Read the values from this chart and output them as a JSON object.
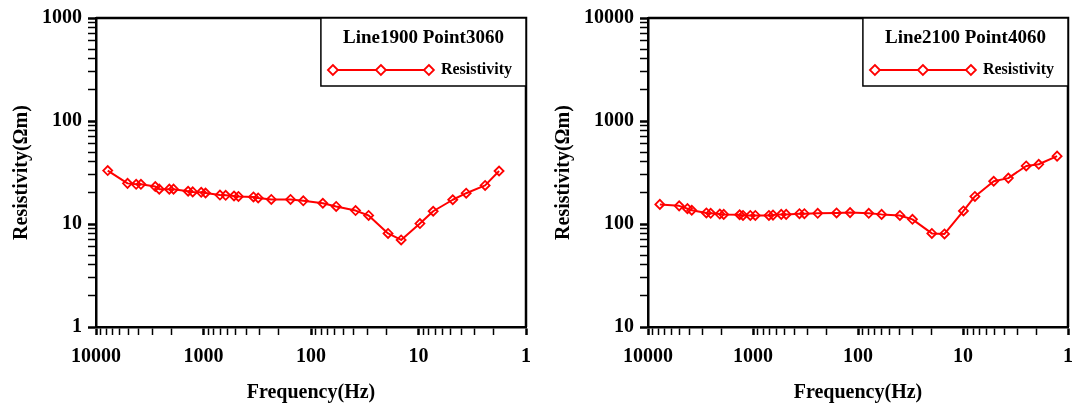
{
  "chart_data": [
    {
      "type": "line",
      "xlabel": "Frequency(Hz)",
      "ylabel": "Resistivity(Ωm)",
      "legend_title": "Line1900 Point3060",
      "legend": "top right",
      "marker": "diamond",
      "line_style": "solid",
      "log": "xy",
      "grid": false,
      "xlim": [
        10000,
        1
      ],
      "ylim": [
        1,
        1000
      ],
      "xticks": [
        10000,
        {
          "value": 9000,
          "label": null
        },
        {
          "value": 8000,
          "label": null
        },
        {
          "value": 7000,
          "label": null
        },
        {
          "value": 6000,
          "label": null
        },
        {
          "value": 5000,
          "label": null
        },
        {
          "value": 4000,
          "label": null
        },
        {
          "value": 3000,
          "label": null
        },
        {
          "value": 2000,
          "label": null
        },
        1000,
        {
          "value": 900,
          "label": null
        },
        {
          "value": 800,
          "label": null
        },
        {
          "value": 700,
          "label": null
        },
        {
          "value": 600,
          "label": null
        },
        {
          "value": 500,
          "label": null
        },
        {
          "value": 400,
          "label": null
        },
        {
          "value": 300,
          "label": null
        },
        {
          "value": 200,
          "label": null
        },
        100,
        {
          "value": 90,
          "label": null
        },
        {
          "value": 80,
          "label": null
        },
        {
          "value": 70,
          "label": null
        },
        {
          "value": 60,
          "label": null
        },
        {
          "value": 50,
          "label": null
        },
        {
          "value": 40,
          "label": null
        },
        {
          "value": 30,
          "label": null
        },
        {
          "value": 20,
          "label": null
        },
        10,
        {
          "value": 9,
          "label": null
        },
        {
          "value": 8,
          "label": null
        },
        {
          "value": 7,
          "label": null
        },
        {
          "value": 6,
          "label": null
        },
        {
          "value": 5,
          "label": null
        },
        {
          "value": 4,
          "label": null
        },
        {
          "value": 3,
          "label": null
        },
        {
          "value": 2,
          "label": null
        },
        1
      ],
      "yticks": [
        1,
        {
          "value": 2,
          "label": null
        },
        {
          "value": 3,
          "label": null
        },
        {
          "value": 4,
          "label": null
        },
        {
          "value": 5,
          "label": null
        },
        {
          "value": 6,
          "label": null
        },
        {
          "value": 7,
          "label": null
        },
        {
          "value": 8,
          "label": null
        },
        {
          "value": 9,
          "label": null
        },
        10,
        {
          "value": 20,
          "label": null
        },
        {
          "value": 30,
          "label": null
        },
        {
          "value": 40,
          "label": null
        },
        {
          "value": 50,
          "label": null
        },
        {
          "value": 60,
          "label": null
        },
        {
          "value": 70,
          "label": null
        },
        {
          "value": 80,
          "label": null
        },
        {
          "value": 90,
          "label": null
        },
        100,
        {
          "value": 200,
          "label": null
        },
        {
          "value": 300,
          "label": null
        },
        {
          "value": 400,
          "label": null
        },
        {
          "value": 500,
          "label": null
        },
        {
          "value": 600,
          "label": null
        },
        {
          "value": 700,
          "label": null
        },
        {
          "value": 800,
          "label": null
        },
        {
          "value": 900,
          "label": null
        },
        1000
      ],
      "x": [
        7780,
        5090,
        4230,
        3820,
        2810,
        2580,
        2080,
        1900,
        1390,
        1260,
        1050,
        957,
        703,
        622,
        520,
        473,
        343,
        310,
        234,
        155,
        118,
        77.6,
        58.3,
        38.5,
        29.1,
        19.2,
        14.5,
        9.7,
        7.3,
        4.8,
        3.6,
        2.4,
        1.78
      ],
      "series": [
        {
          "name": "Resistivity",
          "color": "#ff0000",
          "values": [
            33,
            24.8,
            24.3,
            24.3,
            23.1,
            21.8,
            21.8,
            21.8,
            20.8,
            20.5,
            20.3,
            20,
            19.1,
            19,
            18.7,
            18.5,
            18.3,
            17.9,
            17.3,
            17.3,
            16.8,
            15.9,
            14.8,
            13.5,
            12.1,
            8.1,
            7,
            10.1,
            13.3,
            17.2,
            19.9,
            23.7,
            32.7
          ]
        }
      ]
    },
    {
      "type": "line",
      "xlabel": "Frequency(Hz)",
      "ylabel": "Resistivity(Ωm)",
      "legend_title": "Line2100 Point4060",
      "legend": "top right",
      "marker": "diamond",
      "line_style": "solid",
      "log": "xy",
      "grid": false,
      "xlim": [
        10000,
        1
      ],
      "ylim": [
        10,
        10000
      ],
      "xticks": [
        10000,
        {
          "value": 9000,
          "label": null
        },
        {
          "value": 8000,
          "label": null
        },
        {
          "value": 7000,
          "label": null
        },
        {
          "value": 6000,
          "label": null
        },
        {
          "value": 5000,
          "label": null
        },
        {
          "value": 4000,
          "label": null
        },
        {
          "value": 3000,
          "label": null
        },
        {
          "value": 2000,
          "label": null
        },
        1000,
        {
          "value": 900,
          "label": null
        },
        {
          "value": 800,
          "label": null
        },
        {
          "value": 700,
          "label": null
        },
        {
          "value": 600,
          "label": null
        },
        {
          "value": 500,
          "label": null
        },
        {
          "value": 400,
          "label": null
        },
        {
          "value": 300,
          "label": null
        },
        {
          "value": 200,
          "label": null
        },
        100,
        {
          "value": 90,
          "label": null
        },
        {
          "value": 80,
          "label": null
        },
        {
          "value": 70,
          "label": null
        },
        {
          "value": 60,
          "label": null
        },
        {
          "value": 50,
          "label": null
        },
        {
          "value": 40,
          "label": null
        },
        {
          "value": 30,
          "label": null
        },
        {
          "value": 20,
          "label": null
        },
        10,
        {
          "value": 9,
          "label": null
        },
        {
          "value": 8,
          "label": null
        },
        {
          "value": 7,
          "label": null
        },
        {
          "value": 6,
          "label": null
        },
        {
          "value": 5,
          "label": null
        },
        {
          "value": 4,
          "label": null
        },
        {
          "value": 3,
          "label": null
        },
        {
          "value": 2,
          "label": null
        },
        1
      ],
      "yticks": [
        10,
        {
          "value": 20,
          "label": null
        },
        {
          "value": 30,
          "label": null
        },
        {
          "value": 40,
          "label": null
        },
        {
          "value": 50,
          "label": null
        },
        {
          "value": 60,
          "label": null
        },
        {
          "value": 70,
          "label": null
        },
        {
          "value": 80,
          "label": null
        },
        {
          "value": 90,
          "label": null
        },
        100,
        {
          "value": 200,
          "label": null
        },
        {
          "value": 300,
          "label": null
        },
        {
          "value": 400,
          "label": null
        },
        {
          "value": 500,
          "label": null
        },
        {
          "value": 600,
          "label": null
        },
        {
          "value": 700,
          "label": null
        },
        {
          "value": 800,
          "label": null
        },
        {
          "value": 900,
          "label": null
        },
        1000,
        {
          "value": 2000,
          "label": null
        },
        {
          "value": 3000,
          "label": null
        },
        {
          "value": 4000,
          "label": null
        },
        {
          "value": 5000,
          "label": null
        },
        {
          "value": 6000,
          "label": null
        },
        {
          "value": 7000,
          "label": null
        },
        {
          "value": 8000,
          "label": null
        },
        {
          "value": 9000,
          "label": null
        },
        10000
      ],
      "x": [
        7710,
        5050,
        4210,
        3830,
        2780,
        2530,
        2070,
        1900,
        1340,
        1245,
        1060,
        950,
        705,
        645,
        538,
        483,
        361,
        324,
        242,
        160,
        119,
        79,
        59.6,
        39.9,
        30.3,
        19.8,
        15,
        9.9,
        7.7,
        5.1,
        3.7,
        2.5,
        1.9,
        1.27
      ],
      "series": [
        {
          "name": "Resistivity",
          "color": "#ff0000",
          "values": [
            155,
            150,
            141,
            136,
            128,
            127,
            125,
            124,
            123,
            121,
            121,
            121,
            121,
            122,
            124,
            124,
            126,
            126,
            127,
            128,
            129,
            127,
            124,
            121,
            111,
            81,
            80,
            134,
            185,
            260,
            279,
            366,
            380,
            456
          ]
        }
      ]
    }
  ]
}
